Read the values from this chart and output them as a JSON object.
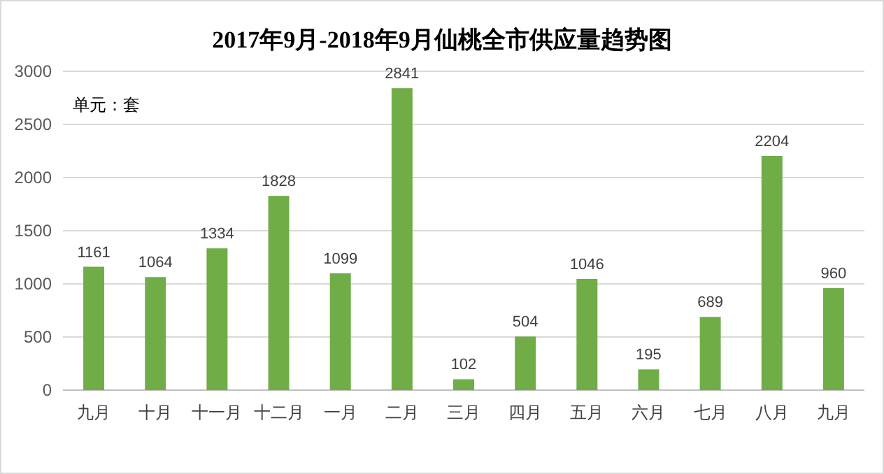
{
  "chart_data": {
    "type": "bar",
    "title": "2017年9月-2018年9月仙桃全市供应量趋势图",
    "categories": [
      "九月",
      "十月",
      "十一月",
      "十二月",
      "一月",
      "二月",
      "三月",
      "四月",
      "五月",
      "六月",
      "七月",
      "八月",
      "九月"
    ],
    "values": [
      1161,
      1064,
      1334,
      1828,
      1099,
      2841,
      102,
      504,
      1046,
      195,
      689,
      2204,
      960
    ],
    "color": "#70ad47",
    "ylim": [
      0,
      3000
    ],
    "yticks": [
      0,
      500,
      1000,
      1500,
      2000,
      2500,
      3000
    ],
    "grid": "y",
    "data_labels": true,
    "annotations": [
      "单元：套"
    ]
  }
}
